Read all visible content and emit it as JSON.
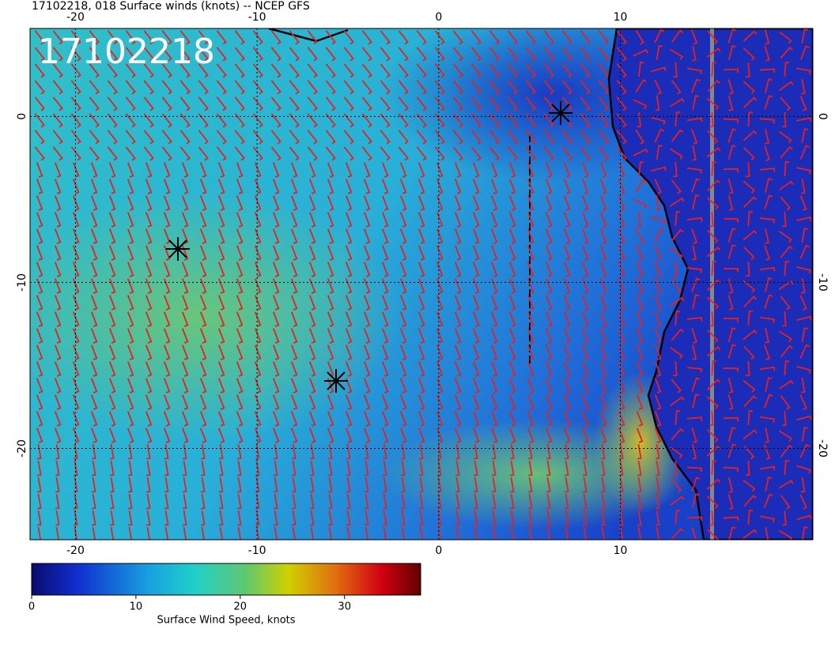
{
  "header": {
    "title": "17102218, 018 Surface winds (knots) -- NCEP GFS"
  },
  "map": {
    "label": "17102218",
    "lon_range": [
      -22.5,
      20.6
    ],
    "lat_range": [
      5.3,
      -25.5
    ],
    "lon_ticks": [
      -20,
      -10,
      0,
      10
    ],
    "lat_ticks": [
      0,
      -10,
      -20
    ]
  },
  "colorbar": {
    "title": "Surface Wind Speed, knots",
    "range": [
      0,
      37.3
    ],
    "ticks": [
      0,
      10,
      20,
      30
    ]
  }
}
